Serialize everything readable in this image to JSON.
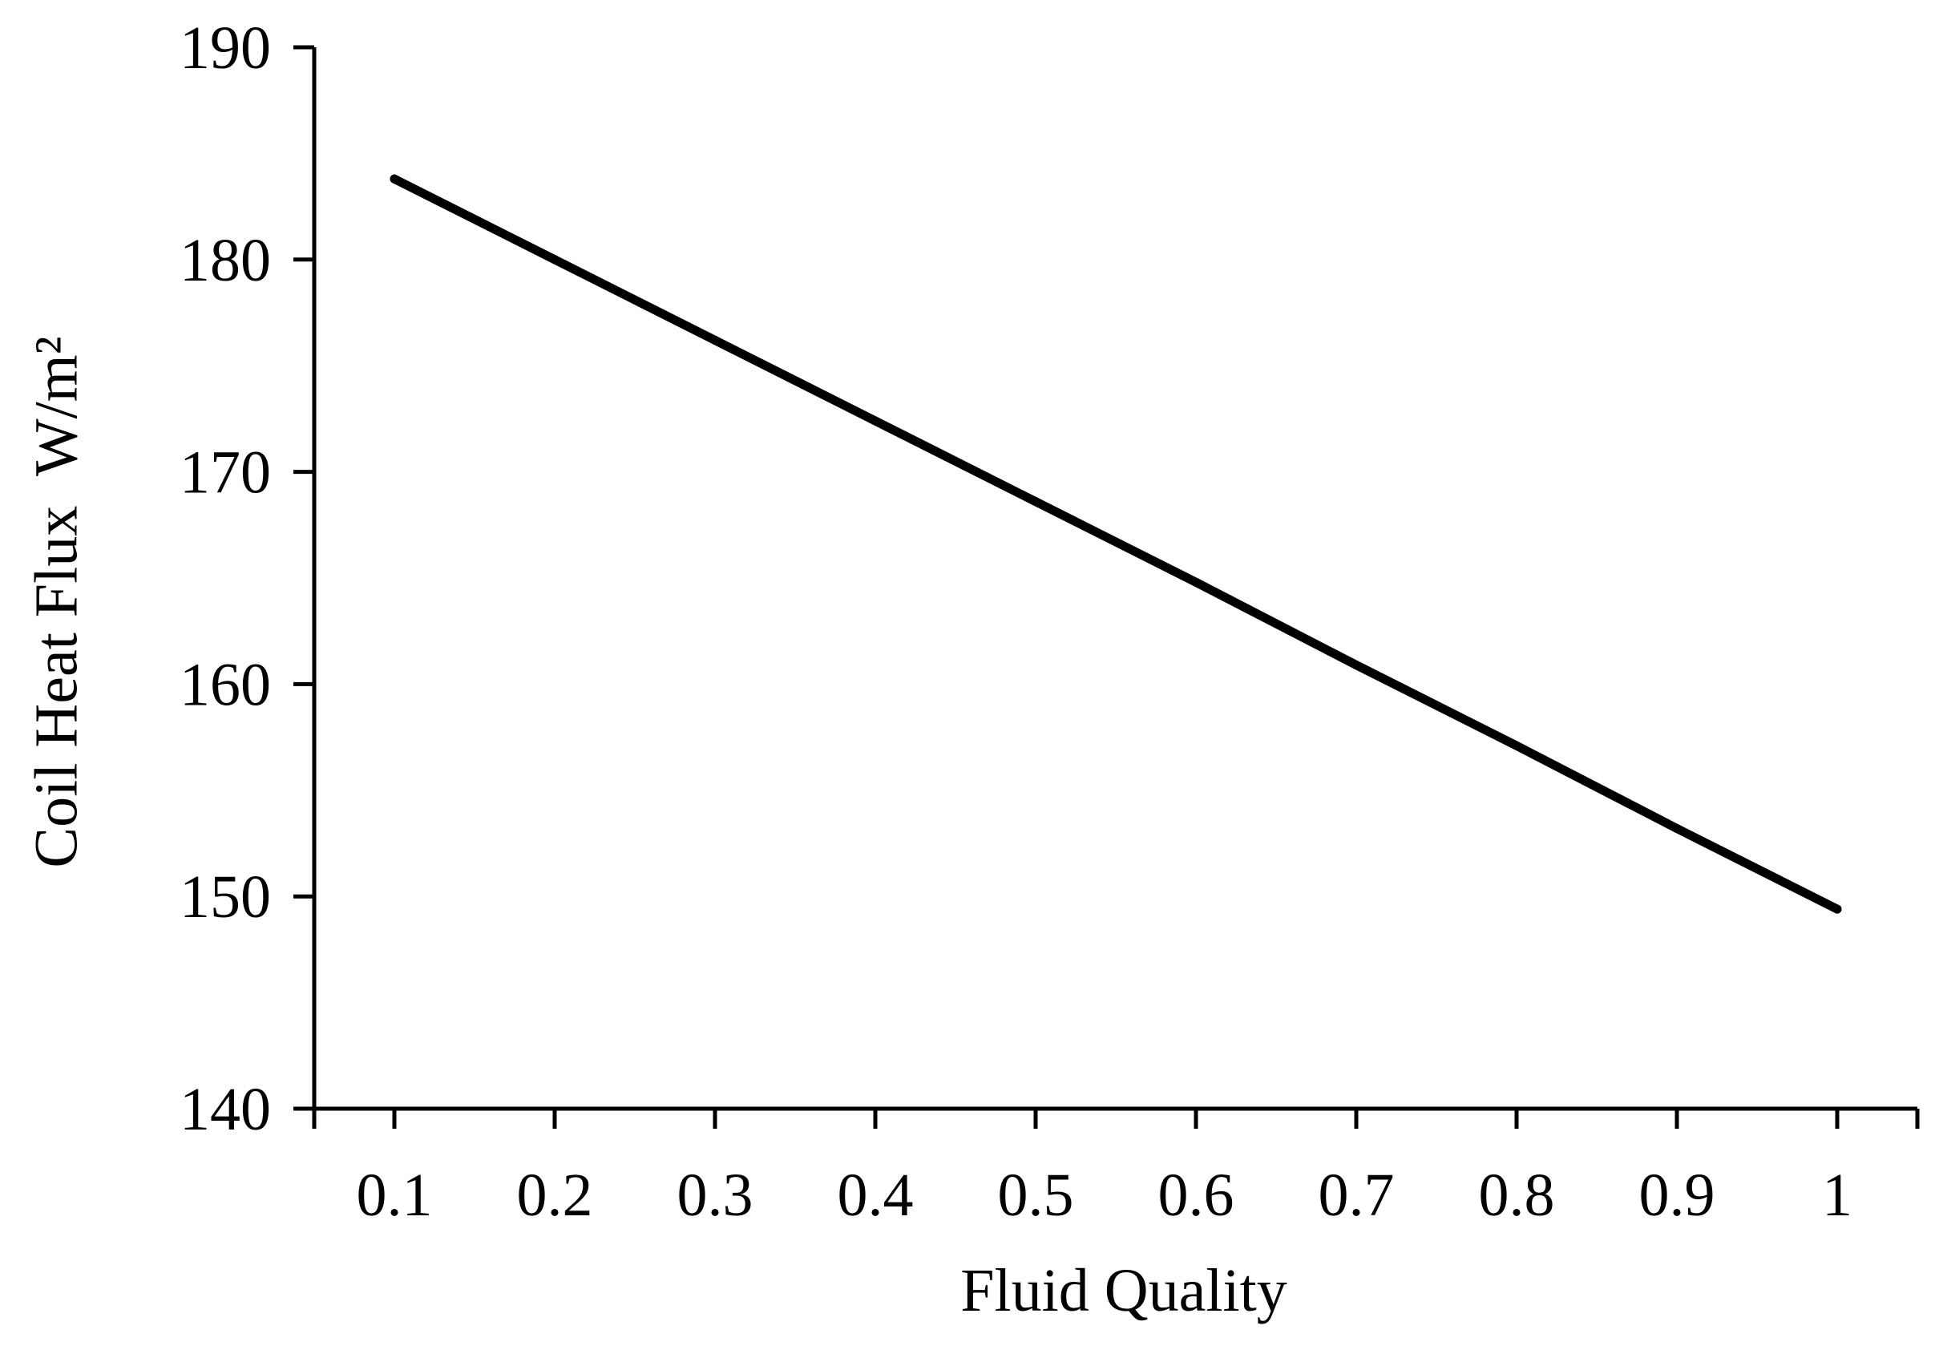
{
  "chart_data": {
    "type": "line",
    "title": "",
    "xlabel": "Fluid Quality",
    "ylabel": "Coil Heat Flux  W/m²",
    "xlim": [
      0.05,
      1.05
    ],
    "ylim": [
      140,
      190
    ],
    "x_ticks": [
      "0.1",
      "0.2",
      "0.3",
      "0.4",
      "0.5",
      "0.6",
      "0.7",
      "0.8",
      "0.9",
      "1"
    ],
    "y_ticks": [
      "140",
      "150",
      "160",
      "170",
      "180",
      "190"
    ],
    "grid": false,
    "legend": "none",
    "series": [
      {
        "x": [
          0.1,
          0.2,
          0.3,
          0.4,
          0.5,
          0.6,
          0.7,
          0.8,
          0.9,
          1.0
        ],
        "y": [
          183.8,
          180.0,
          176.2,
          172.4,
          168.6,
          164.8,
          160.9,
          157.1,
          153.2,
          149.4
        ],
        "color": "#000000"
      }
    ]
  }
}
